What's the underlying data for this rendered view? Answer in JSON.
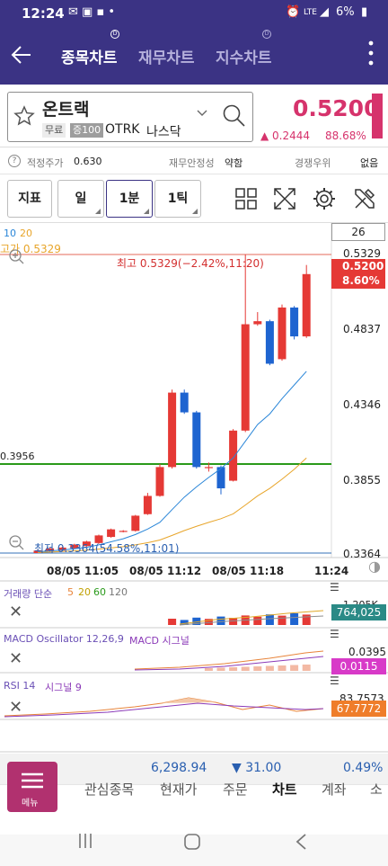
{
  "status": {
    "time": "12:24",
    "battery": "6%",
    "net": "LTE"
  },
  "tabs": [
    {
      "label": "종목차트",
      "active": true
    },
    {
      "label": "재무차트",
      "active": false
    },
    {
      "label": "지수차트",
      "active": false
    }
  ],
  "stock": {
    "name": "온트랙",
    "tag_free": "무료",
    "tag_margin": "증100",
    "ticker": "OTRK",
    "market": "나스닥",
    "price": "0.5200",
    "change": "▲ 0.2444",
    "change_pct": "88.68%"
  },
  "info": {
    "fair_label": "적정주가",
    "fair_value": "0.630",
    "stability_label": "재무안정성",
    "stability_value": "약함",
    "rank_label": "경쟁우위",
    "rank_value": "없음"
  },
  "toolbar": {
    "indicator": "지표",
    "day": "일",
    "minute": "1분",
    "tick": "1틱"
  },
  "chart": {
    "counter": "26",
    "ma_legend_10": "10",
    "ma_legend_20": "20",
    "high_label": "고가 0.5329",
    "high_annotation": "최고 0.5329(−2.42%,11:20)",
    "low_annotation": "최저 0.3364(54.58%,11:01)",
    "hline_value": "0.3956",
    "price_badge": "0.5200",
    "pct_badge": "8.60%",
    "y_ticks": [
      "0.5329",
      "0.4837",
      "0.4346",
      "0.3855",
      "0.3364"
    ],
    "x_ticks": [
      "08/05 11:05",
      "08/05 11:12",
      "08/05 11:18",
      "11:24"
    ],
    "volume_label": "거래량 단순",
    "volume_ma": [
      "5",
      "20",
      "60",
      "120"
    ],
    "volume_top": "1,205K",
    "volume_value": "764,025",
    "macd_label": "MACD Oscillator 12,26,9",
    "macd_sub": "MACD 시그널",
    "macd_top": "0.0395",
    "macd_value": "0.0115",
    "rsi_label": "RSI 14",
    "rsi_sub": "시그널 9",
    "rsi_top": "83.7573",
    "rsi_value": "67.7772"
  },
  "chart_data": {
    "type": "candlestick",
    "candles": [
      {
        "o": 0.3364,
        "c": 0.338,
        "h": 0.339,
        "l": 0.3364
      },
      {
        "o": 0.3375,
        "c": 0.3395,
        "h": 0.34,
        "l": 0.337
      },
      {
        "o": 0.338,
        "c": 0.34,
        "h": 0.3405,
        "l": 0.3375
      },
      {
        "o": 0.3395,
        "c": 0.342,
        "h": 0.3425,
        "l": 0.339
      },
      {
        "o": 0.341,
        "c": 0.344,
        "h": 0.3445,
        "l": 0.3405
      },
      {
        "o": 0.343,
        "c": 0.348,
        "h": 0.3485,
        "l": 0.3425
      },
      {
        "o": 0.347,
        "c": 0.352,
        "h": 0.3525,
        "l": 0.3465
      },
      {
        "o": 0.351,
        "c": 0.351,
        "h": 0.3515,
        "l": 0.35
      },
      {
        "o": 0.351,
        "c": 0.361,
        "h": 0.3615,
        "l": 0.3505
      },
      {
        "o": 0.362,
        "c": 0.374,
        "h": 0.376,
        "l": 0.3615
      },
      {
        "o": 0.374,
        "c": 0.393,
        "h": 0.395,
        "l": 0.3735
      },
      {
        "o": 0.393,
        "c": 0.442,
        "h": 0.444,
        "l": 0.392
      },
      {
        "o": 0.442,
        "c": 0.429,
        "h": 0.444,
        "l": 0.428
      },
      {
        "o": 0.429,
        "c": 0.393,
        "h": 0.43,
        "l": 0.392
      },
      {
        "o": 0.393,
        "c": 0.393,
        "h": 0.396,
        "l": 0.39
      },
      {
        "o": 0.393,
        "c": 0.379,
        "h": 0.394,
        "l": 0.375
      },
      {
        "o": 0.384,
        "c": 0.417,
        "h": 0.418,
        "l": 0.3835
      },
      {
        "o": 0.417,
        "c": 0.487,
        "h": 0.5329,
        "l": 0.416
      },
      {
        "o": 0.487,
        "c": 0.489,
        "h": 0.495,
        "l": 0.486
      },
      {
        "o": 0.489,
        "c": 0.461,
        "h": 0.49,
        "l": 0.46
      },
      {
        "o": 0.464,
        "c": 0.498,
        "h": 0.5,
        "l": 0.463
      },
      {
        "o": 0.498,
        "c": 0.479,
        "h": 0.499,
        "l": 0.477
      },
      {
        "o": 0.479,
        "c": 0.52,
        "h": 0.526,
        "l": 0.478
      }
    ],
    "ma10": [
      0.3372,
      0.3378,
      0.3384,
      0.3392,
      0.3402,
      0.3418,
      0.3438,
      0.3458,
      0.3486,
      0.3522,
      0.3566,
      0.365,
      0.3732,
      0.38,
      0.3862,
      0.392,
      0.399,
      0.41,
      0.421,
      0.428,
      0.438,
      0.447,
      0.456
    ],
    "ma20": [
      0.3368,
      0.3371,
      0.3374,
      0.3378,
      0.3383,
      0.339,
      0.3398,
      0.3406,
      0.3418,
      0.3432,
      0.345,
      0.348,
      0.3512,
      0.354,
      0.3566,
      0.359,
      0.3622,
      0.368,
      0.374,
      0.379,
      0.385,
      0.3915,
      0.399
    ],
    "y_range": [
      0.3364,
      0.5329
    ]
  }
}
